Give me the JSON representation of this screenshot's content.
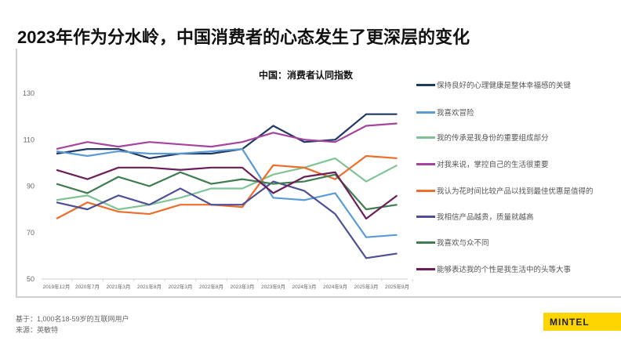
{
  "page_title": "2023年作为分水岭，中国消费者的心态发生了更深层的变化",
  "footer": {
    "base": "基于：1,000名18-59岁的互联网用户",
    "source": "来源：英敏特"
  },
  "logo": "MINTEL",
  "chart_data": {
    "type": "line",
    "title": "中国：消费者认同指数",
    "xlabel": "",
    "ylabel": "",
    "ylim": [
      50,
      130
    ],
    "yticks": [
      50,
      70,
      90,
      110,
      130
    ],
    "grid": false,
    "legend_placement": "right",
    "categories": [
      "2019年12月",
      "2020年7月",
      "2021年3月",
      "2021年8月",
      "2022年3月",
      "2022年8月",
      "2023年3月",
      "2023年9月",
      "2024年3月",
      "2024年9月",
      "2025年3月",
      "2025年9月"
    ],
    "series": [
      {
        "name": "保持良好的心理健康是整体幸福感的关键",
        "color": "#1f3864",
        "values": [
          104,
          106,
          106,
          102,
          104,
          104,
          106,
          116,
          109,
          110,
          121,
          121
        ]
      },
      {
        "name": "我喜欢冒险",
        "color": "#5b9bd5",
        "values": [
          105,
          103,
          105,
          104,
          104,
          105,
          106,
          85,
          84,
          87,
          68,
          69
        ]
      },
      {
        "name": "我的传承是我身份的重要组成部分",
        "color": "#7fc496",
        "values": [
          84,
          86,
          80,
          82,
          85,
          89,
          89,
          95,
          98,
          102,
          92,
          99
        ]
      },
      {
        "name": "对我来说，掌控自己的生活很重要",
        "color": "#a4449f",
        "values": [
          106,
          109,
          107,
          109,
          108,
          107,
          109,
          113,
          110,
          109,
          116,
          117
        ]
      },
      {
        "name": "我认为花时间比较产品以找到最佳优惠是值得的",
        "color": "#ed6d2b",
        "values": [
          76,
          83,
          79,
          78,
          82,
          82,
          81,
          99,
          98,
          93,
          103,
          102
        ]
      },
      {
        "name": "我相信产品越贵，质量就越高",
        "color": "#4e4f95",
        "values": [
          83,
          80,
          86,
          82,
          89,
          82,
          82,
          92,
          88,
          78,
          59,
          61
        ]
      },
      {
        "name": "我喜欢与众不同",
        "color": "#3e7d4f",
        "values": [
          91,
          87,
          94,
          90,
          96,
          91,
          93,
          91,
          92,
          95,
          80,
          82
        ]
      },
      {
        "name": "能够表达我的个性是我生活中的头等大事",
        "color": "#6b1e57",
        "values": [
          97,
          93,
          98,
          98,
          97,
          98,
          98,
          87,
          94,
          96,
          76,
          86
        ]
      }
    ]
  }
}
